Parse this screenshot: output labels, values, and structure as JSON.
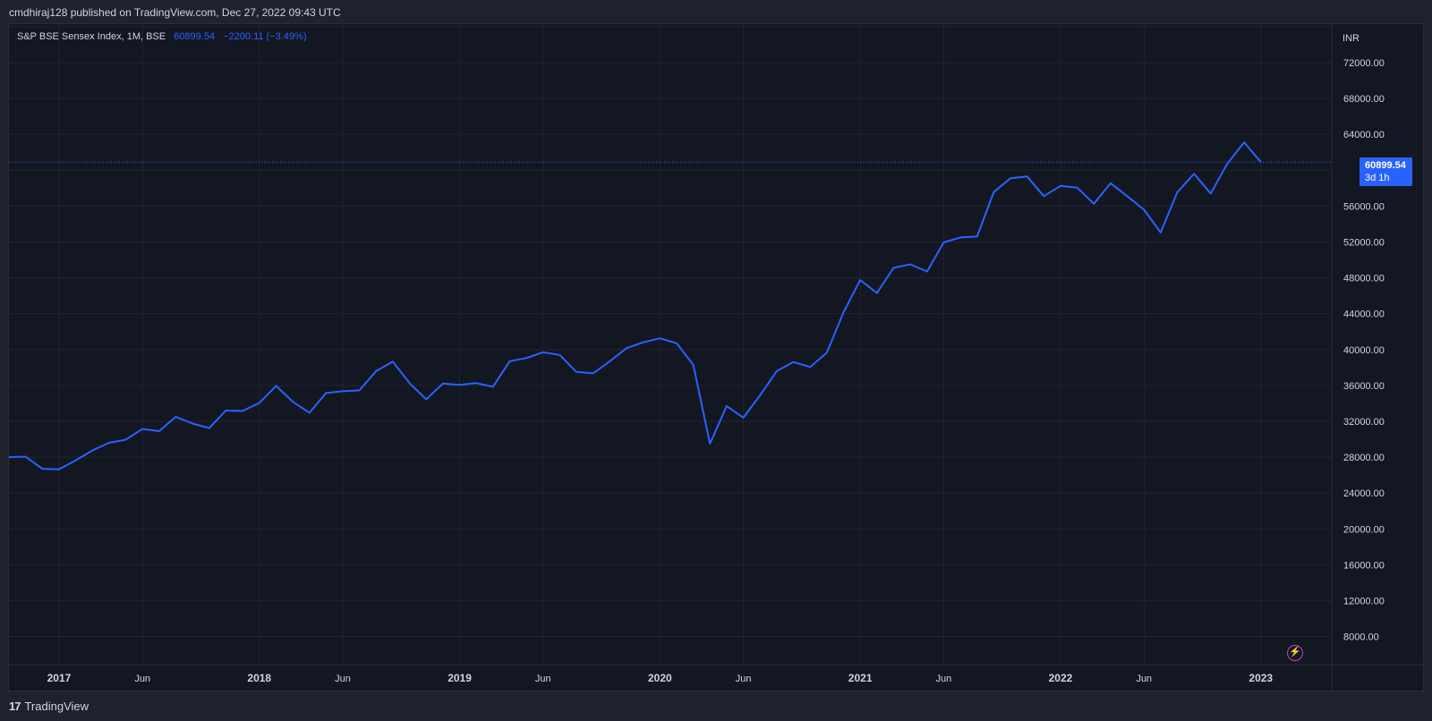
{
  "header": {
    "published_text": "cmdhiraj128 published on TradingView.com, Dec 27, 2022 09:43 UTC"
  },
  "legend": {
    "symbol": "S&P BSE Sensex Index, 1M, BSE",
    "last": "60899.54",
    "change": "−2200.11 (−3.49%)"
  },
  "price_tag": {
    "value": "60899.54",
    "countdown": "3d 1h"
  },
  "footer": {
    "brand": "TradingView",
    "logo_text": "17"
  },
  "colors": {
    "background": "#131722",
    "line": "#2962ff",
    "grid": "#1f2430",
    "text": "#d1d4dc"
  },
  "chart_data": {
    "type": "line",
    "currency_label": "INR",
    "x_start": "2016-10",
    "x_step": "1 month",
    "values": [
      28000,
      28050,
      26700,
      26650,
      27650,
      28750,
      29600,
      29950,
      31150,
      30900,
      32500,
      31750,
      31250,
      33200,
      33150,
      34050,
      35950,
      34200,
      32950,
      35150,
      35350,
      35450,
      37600,
      38650,
      36250,
      34450,
      36200,
      36050,
      36250,
      35850,
      38700,
      39050,
      39700,
      39400,
      37500,
      37350,
      38700,
      40150,
      40800,
      41250,
      40700,
      38300,
      29500,
      33700,
      32400,
      34900,
      37600,
      38600,
      38050,
      39650,
      44150,
      47750,
      46300,
      49100,
      49500,
      48700,
      51950,
      52500,
      52600,
      57550,
      59100,
      59300,
      57100,
      58250,
      58050,
      56250,
      58550,
      57100,
      55600,
      53050,
      57550,
      59600,
      57400,
      60750,
      63100,
      60899.54
    ],
    "last_value": 60899.54,
    "y_ticks": [
      "72000.00",
      "68000.00",
      "64000.00",
      "56000.00",
      "52000.00",
      "48000.00",
      "44000.00",
      "40000.00",
      "36000.00",
      "32000.00",
      "28000.00",
      "24000.00",
      "20000.00",
      "16000.00",
      "12000.00",
      "8000.00"
    ],
    "y_tick_values": [
      72000,
      68000,
      64000,
      56000,
      52000,
      48000,
      44000,
      40000,
      36000,
      32000,
      28000,
      24000,
      20000,
      16000,
      12000,
      8000
    ],
    "x_ticks": [
      {
        "label": "2017",
        "month_index": 3
      },
      {
        "label": "Jun",
        "month_index": 8
      },
      {
        "label": "2018",
        "month_index": 15
      },
      {
        "label": "Jun",
        "month_index": 20
      },
      {
        "label": "2019",
        "month_index": 27
      },
      {
        "label": "Jun",
        "month_index": 32
      },
      {
        "label": "2020",
        "month_index": 39
      },
      {
        "label": "Jun",
        "month_index": 44
      },
      {
        "label": "2021",
        "month_index": 51
      },
      {
        "label": "Jun",
        "month_index": 56
      },
      {
        "label": "2022",
        "month_index": 63
      },
      {
        "label": "Jun",
        "month_index": 68
      },
      {
        "label": "2023",
        "month_index": 75
      }
    ],
    "grid": true
  }
}
